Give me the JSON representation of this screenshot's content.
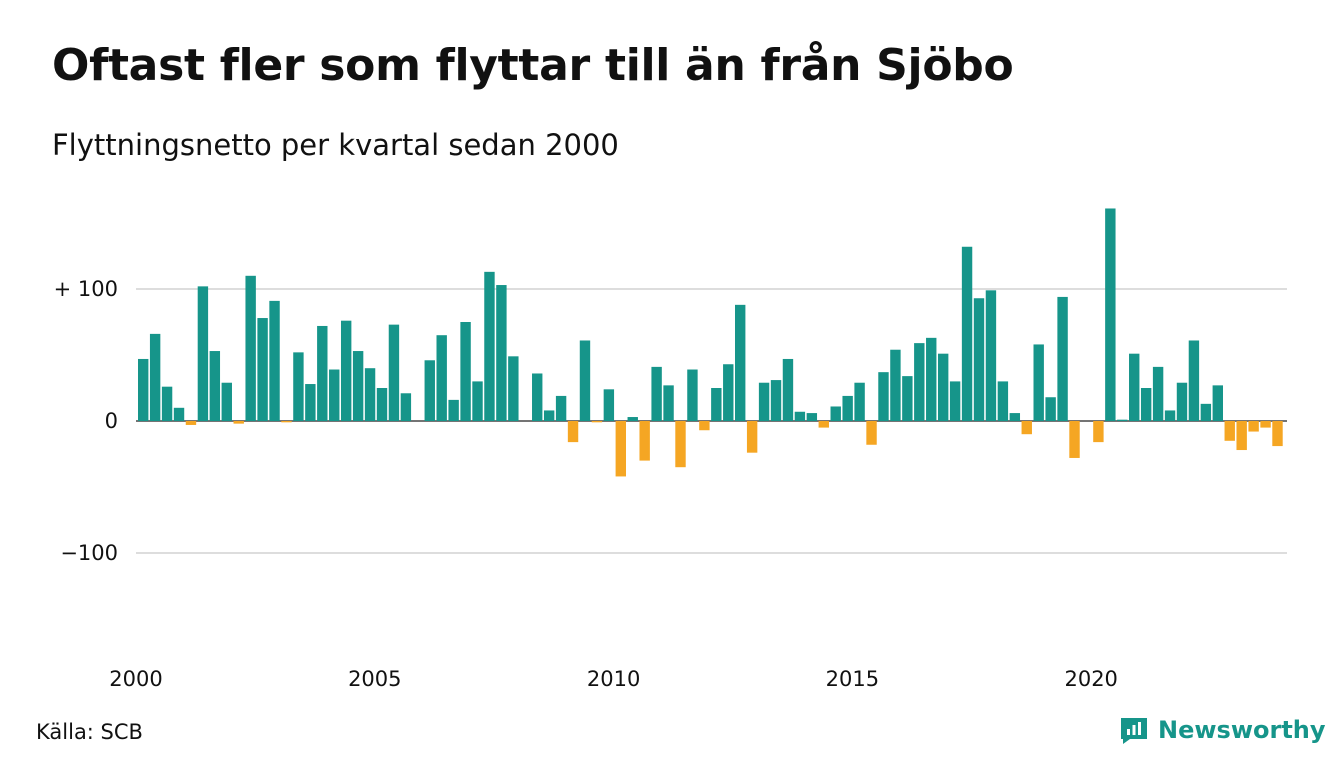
{
  "title": "Oftast fler som flyttar till än från Sjöbo",
  "subtitle": "Flyttningsnetto per kvartal sedan 2000",
  "source": "Källa: SCB",
  "brand": "Newsworthy",
  "colors": {
    "positive": "#16958a",
    "negative": "#f5a623",
    "grid": "#dddddd",
    "text": "#111111"
  },
  "chart_data": {
    "type": "bar",
    "title": "Oftast fler som flyttar till än från Sjöbo",
    "subtitle": "Flyttningsnetto per kvartal sedan 2000",
    "xlabel": "",
    "ylabel": "",
    "ylim": [
      -175,
      165
    ],
    "grid": "horizontal",
    "y_ticks": [
      {
        "value": 100,
        "label": "+ 100"
      },
      {
        "value": 0,
        "label": "0"
      },
      {
        "value": -100,
        "label": "−100"
      }
    ],
    "x_ticks": [
      {
        "year": 2000,
        "label": "2000"
      },
      {
        "year": 2005,
        "label": "2005"
      },
      {
        "year": 2010,
        "label": "2010"
      },
      {
        "year": 2015,
        "label": "2015"
      },
      {
        "year": 2020,
        "label": "2020"
      }
    ],
    "first_period": "2000K1",
    "series": [
      {
        "values": [
          47,
          66,
          26,
          10,
          -3,
          102,
          53,
          29,
          -2,
          110,
          78,
          91,
          -1,
          52,
          28,
          72,
          39,
          76,
          53,
          40,
          25,
          73,
          21,
          0,
          46,
          65,
          16,
          75,
          30,
          113,
          103,
          49,
          0,
          36,
          8,
          19,
          -16,
          61,
          -1,
          24,
          -42,
          3,
          -30,
          41,
          27,
          -35,
          39,
          -7,
          25,
          43,
          88,
          -24,
          29,
          31,
          47,
          7,
          6,
          -5,
          11,
          19,
          29,
          -18,
          37,
          54,
          34,
          59,
          63,
          51,
          30,
          132,
          93,
          99,
          30,
          6,
          -10,
          58,
          18,
          94,
          -28,
          0,
          -16,
          161,
          1,
          51,
          25,
          41,
          8,
          29,
          61,
          13,
          27,
          -15,
          -22,
          -8,
          -5,
          -19
        ]
      }
    ]
  }
}
